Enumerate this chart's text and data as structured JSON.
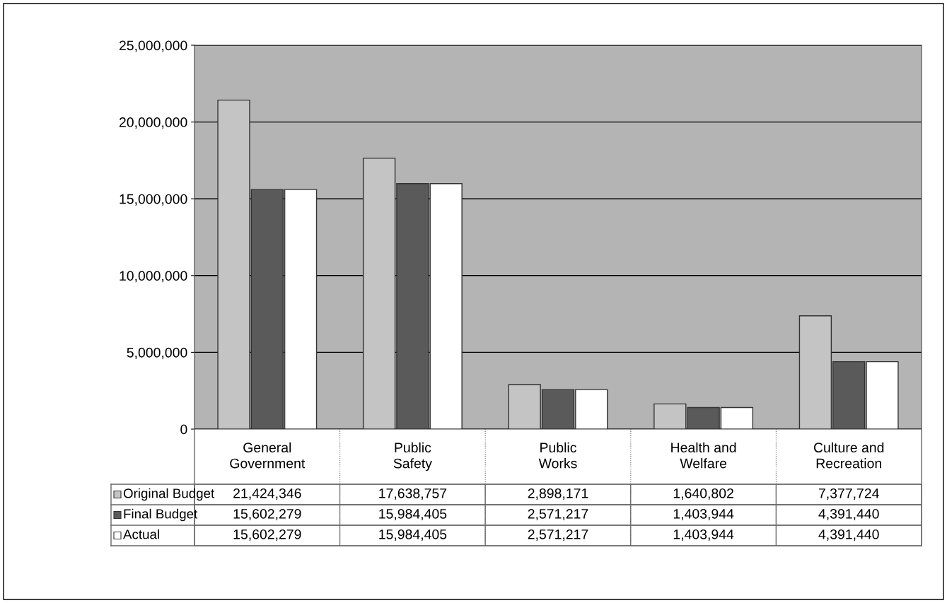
{
  "chart_data": {
    "type": "bar",
    "categories": [
      "General\nGovernment",
      "Public\nSafety",
      "Public\nWorks",
      "Health and\nWelfare",
      "Culture and\nRecreation"
    ],
    "series": [
      {
        "name": "Original Budget",
        "color": "#c4c4c4",
        "values": [
          21424346,
          17638757,
          2898171,
          1640802,
          7377724
        ],
        "value_labels": [
          "21,424,346",
          "17,638,757",
          "2,898,171",
          "1,640,802",
          "7,377,724"
        ]
      },
      {
        "name": "Final Budget",
        "color": "#5a5a5a",
        "values": [
          15602279,
          15984405,
          2571217,
          1403944,
          4391440
        ],
        "value_labels": [
          "15,602,279",
          "15,984,405",
          "2,571,217",
          "1,403,944",
          "4,391,440"
        ]
      },
      {
        "name": "Actual",
        "color": "#ffffff",
        "values": [
          15602279,
          15984405,
          2571217,
          1403944,
          4391440
        ],
        "value_labels": [
          "15,602,279",
          "15,984,405",
          "2,571,217",
          "1,403,944",
          "4,391,440"
        ]
      }
    ],
    "ylim": [
      0,
      25000000
    ],
    "yticks": [
      {
        "value": 0,
        "label": "0"
      },
      {
        "value": 5000000,
        "label": "5,000,000"
      },
      {
        "value": 10000000,
        "label": "10,000,000"
      },
      {
        "value": 15000000,
        "label": "15,000,000"
      },
      {
        "value": 20000000,
        "label": "20,000,000"
      },
      {
        "value": 25000000,
        "label": "25,000,000"
      }
    ],
    "grid": "y",
    "legend": "bottom"
  }
}
